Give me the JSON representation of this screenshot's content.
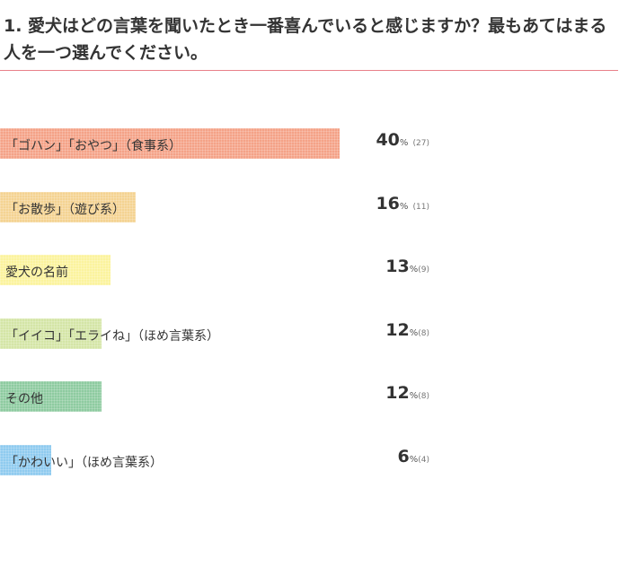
{
  "question": "1. 愛犬はどの言葉を聞いたとき一番喜んでいると感じますか？最もあてはまる人を一つ選んでください。",
  "percent_sign": "%",
  "chart_data": {
    "type": "bar",
    "orientation": "horizontal",
    "title": "1. 愛犬はどの言葉を聞いたとき一番喜んでいると感じますか？最もあてはまる人を一つ選んでください。",
    "categories": [
      "「ゴハン」「おやつ」（食事系）",
      "「お散歩」（遊び系）",
      "愛犬の名前",
      "「イイコ」「エライね」（ほめ言葉系）",
      "その他",
      "「かわいい」（ほめ言葉系）"
    ],
    "values": [
      40,
      16,
      13,
      12,
      12,
      6
    ],
    "counts": [
      27,
      11,
      9,
      8,
      8,
      4
    ],
    "count_labels": [
      "(27)",
      "(11)",
      "(9)",
      "(8)",
      "(8)",
      "(4)"
    ],
    "colors": [
      "#f4a287",
      "#f4d392",
      "#fbf39d",
      "#d4e5a6",
      "#8ecba0",
      "#8fcbef"
    ],
    "xlim": [
      0,
      40
    ],
    "grid": false,
    "legend": "none"
  }
}
